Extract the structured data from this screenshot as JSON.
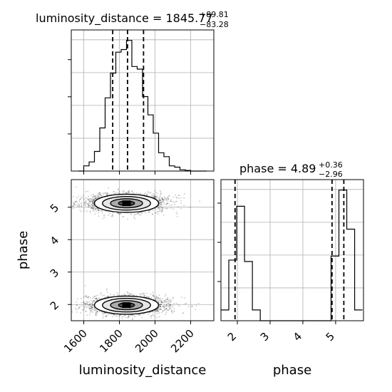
{
  "chart_data": {
    "type": "corner",
    "parameters": [
      "luminosity_distance",
      "phase"
    ],
    "titles": [
      {
        "prefix": "luminosity_distance = ",
        "median": "1845.77",
        "plus": "+89.81",
        "minus": "−83.28"
      },
      {
        "prefix": "phase = ",
        "median": "4.89",
        "plus": "+0.36",
        "minus": "−2.96"
      }
    ],
    "axis_labels": {
      "x": [
        "luminosity_distance",
        "phase"
      ],
      "y": [
        "phase"
      ]
    },
    "ranges": {
      "luminosity_distance": [
        1530,
        2330
      ],
      "phase": [
        1.5,
        5.85
      ]
    },
    "ticks": {
      "luminosity_distance": [
        1600,
        1800,
        2000,
        2200
      ],
      "phase": [
        2,
        3,
        4,
        5
      ]
    },
    "quantiles": {
      "luminosity_distance": [
        1762.49,
        1845.77,
        1935.58
      ],
      "phase": [
        1.93,
        4.89,
        5.25
      ]
    },
    "hist_luminosity_distance": {
      "bin_edges": [
        1570,
        1600,
        1630,
        1660,
        1690,
        1720,
        1750,
        1780,
        1810,
        1840,
        1870,
        1900,
        1930,
        1960,
        1990,
        2020,
        2050,
        2080,
        2110,
        2140,
        2170,
        2200,
        2230,
        2260,
        2290
      ],
      "counts": [
        0,
        0.04,
        0.07,
        0.15,
        0.33,
        0.56,
        0.75,
        0.91,
        0.93,
        1.0,
        0.8,
        0.78,
        0.57,
        0.43,
        0.29,
        0.14,
        0.11,
        0.04,
        0.03,
        0.01,
        0.005,
        0,
        0,
        0
      ]
    },
    "hist_phase": {
      "bin_edges": [
        1.5,
        1.74,
        1.98,
        2.22,
        2.46,
        2.7,
        2.94,
        3.18,
        3.42,
        3.66,
        3.9,
        4.14,
        4.38,
        4.62,
        4.86,
        5.1,
        5.34,
        5.58,
        5.82
      ],
      "counts": [
        0.08,
        0.45,
        0.85,
        0.44,
        0.08,
        0,
        0,
        0,
        0,
        0,
        0,
        0,
        0,
        0,
        0.48,
        0.97,
        0.68,
        0.08
      ]
    },
    "joint_2d": {
      "x": "luminosity_distance",
      "y": "phase",
      "modes": [
        {
          "x_center": 1840,
          "y_center": 5.12,
          "x_sigma": 90,
          "y_sigma": 0.14
        },
        {
          "x_center": 1840,
          "y_center": 1.98,
          "x_sigma": 90,
          "y_sigma": 0.14
        }
      ],
      "contour_levels_sigma": [
        0.5,
        1.0,
        1.5,
        2.0
      ]
    }
  }
}
